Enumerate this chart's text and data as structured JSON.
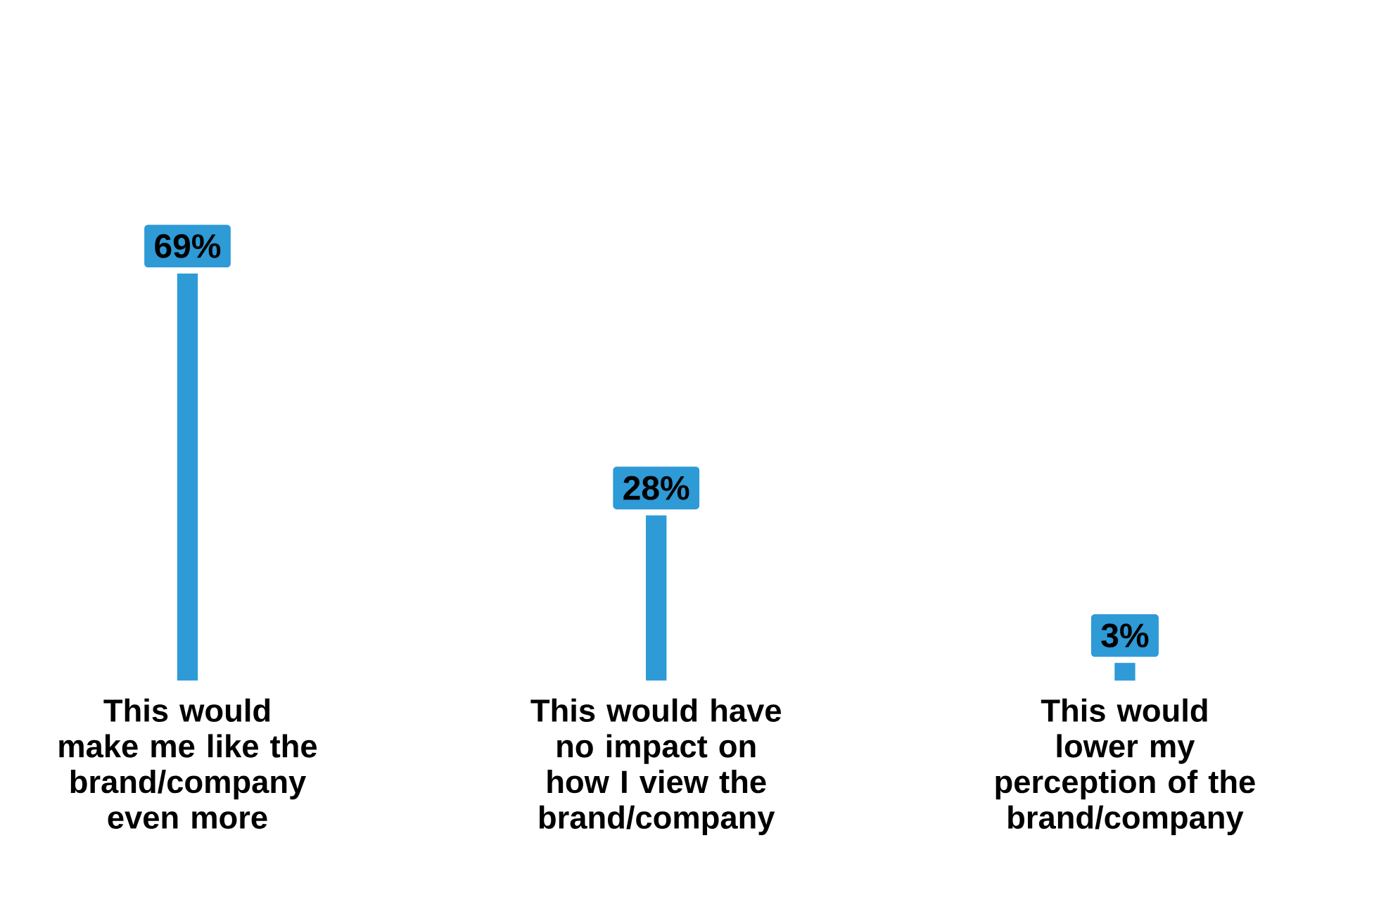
{
  "chart_data": {
    "type": "bar",
    "categories": [
      "This would make me like the brand/company even more",
      "This would have no impact on how I view the brand/company",
      "This would lower my perception of the brand/company"
    ],
    "values": [
      69,
      28,
      3
    ],
    "value_labels": [
      "69%",
      "28%",
      "3%"
    ],
    "color": "#2e9ad6"
  }
}
